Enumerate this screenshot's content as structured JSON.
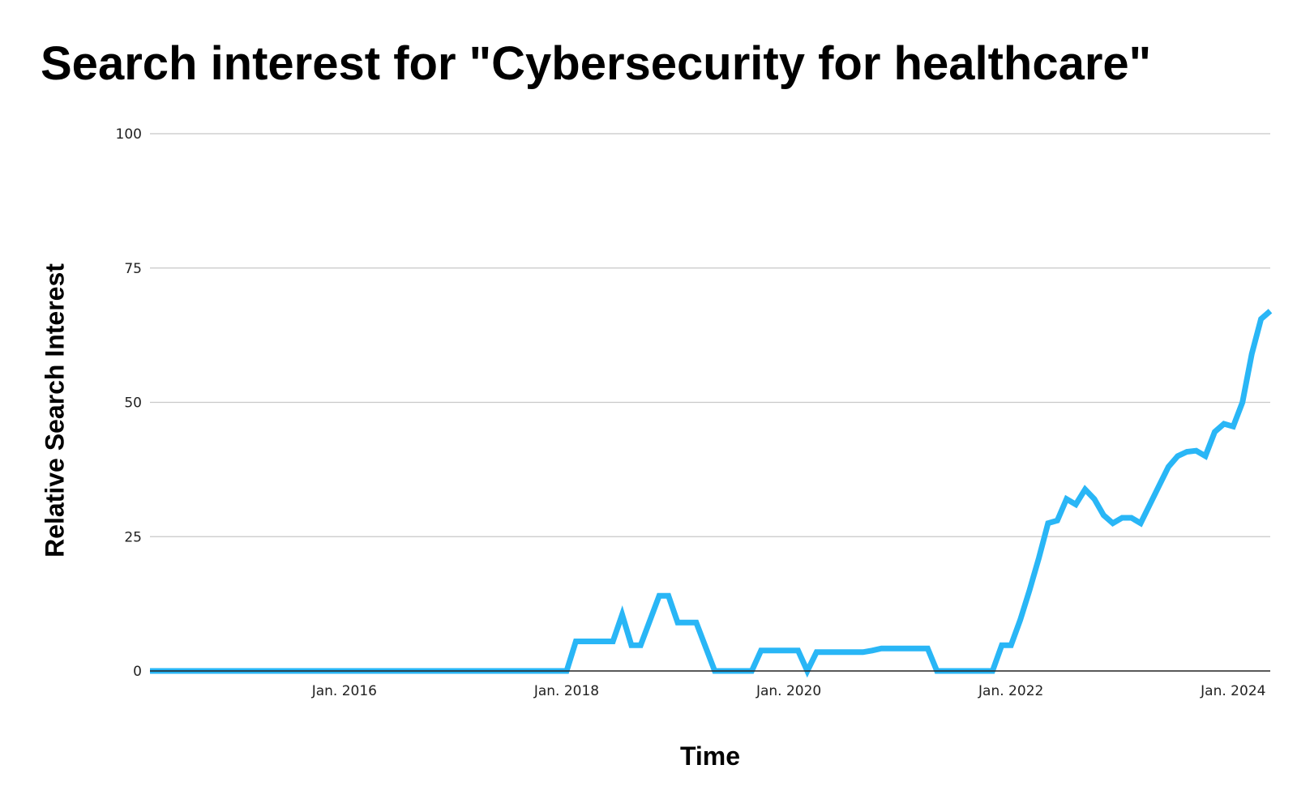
{
  "chart_data": {
    "type": "line",
    "title": "Search interest for \"Cybersecurity for healthcare\"",
    "xlabel": "Time",
    "ylabel": "Relative Search Interest",
    "ylim": [
      0,
      100
    ],
    "yticks": [
      0,
      25,
      50,
      75,
      100
    ],
    "xlim": [
      "2014-04",
      "2024-05"
    ],
    "xticks": [
      {
        "date": "2016-01",
        "label": "Jan. 2016"
      },
      {
        "date": "2018-01",
        "label": "Jan. 2018"
      },
      {
        "date": "2020-01",
        "label": "Jan. 2020"
      },
      {
        "date": "2022-01",
        "label": "Jan. 2022"
      },
      {
        "date": "2024-01",
        "label": "Jan. 2024"
      }
    ],
    "grid": true,
    "line_color": "#29b6f6",
    "series": [
      {
        "values": [
          [
            "2014-04",
            0
          ],
          [
            "2018-01",
            0
          ],
          [
            "2018-02",
            5.5
          ],
          [
            "2018-06",
            5.5
          ],
          [
            "2018-07",
            10.5
          ],
          [
            "2018-08",
            4.8
          ],
          [
            "2018-09",
            4.8
          ],
          [
            "2018-11",
            14
          ],
          [
            "2018-12",
            14
          ],
          [
            "2019-01",
            9
          ],
          [
            "2019-03",
            9
          ],
          [
            "2019-05",
            0
          ],
          [
            "2019-09",
            0
          ],
          [
            "2019-10",
            3.8
          ],
          [
            "2020-02",
            3.8
          ],
          [
            "2020-03",
            0
          ],
          [
            "2020-04",
            3.5
          ],
          [
            "2020-09",
            3.5
          ],
          [
            "2020-10",
            3.8
          ],
          [
            "2020-11",
            4.2
          ],
          [
            "2021-04",
            4.2
          ],
          [
            "2021-05",
            0
          ],
          [
            "2021-11",
            0
          ],
          [
            "2021-12",
            4.8
          ],
          [
            "2022-01",
            4.8
          ],
          [
            "2022-02",
            9.5
          ],
          [
            "2022-03",
            15
          ],
          [
            "2022-04",
            21
          ],
          [
            "2022-05",
            27.5
          ],
          [
            "2022-06",
            28
          ],
          [
            "2022-07",
            32
          ],
          [
            "2022-08",
            31
          ],
          [
            "2022-09",
            33.8
          ],
          [
            "2022-10",
            32
          ],
          [
            "2022-11",
            29
          ],
          [
            "2022-12",
            27.5
          ],
          [
            "2023-01",
            28.5
          ],
          [
            "2023-02",
            28.5
          ],
          [
            "2023-03",
            27.5
          ],
          [
            "2023-04",
            31
          ],
          [
            "2023-05",
            34.5
          ],
          [
            "2023-06",
            38
          ],
          [
            "2023-07",
            40
          ],
          [
            "2023-08",
            40.8
          ],
          [
            "2023-09",
            41
          ],
          [
            "2023-10",
            40
          ],
          [
            "2023-11",
            44.5
          ],
          [
            "2023-12",
            46
          ],
          [
            "2024-01",
            45.5
          ],
          [
            "2024-02",
            50
          ],
          [
            "2024-03",
            59
          ],
          [
            "2024-04",
            65.5
          ],
          [
            "2024-05",
            67
          ]
        ]
      }
    ]
  }
}
